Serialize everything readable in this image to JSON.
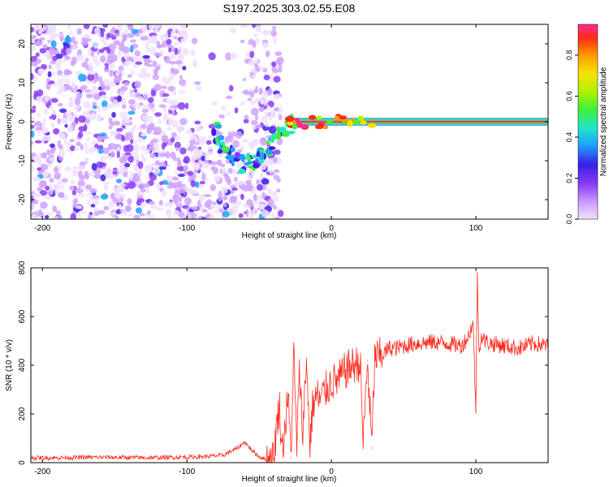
{
  "figure": {
    "title": "S197.2025.303.02.55.E08"
  },
  "chart_data": [
    {
      "type": "heatmap",
      "xlabel": "Height of straight line (km)",
      "ylabel": "Frequency (Hz)",
      "xlim": [
        -208,
        150
      ],
      "ylim": [
        -25,
        25
      ],
      "xticks": [
        -200,
        -100,
        0,
        100
      ],
      "yticks": [
        -20,
        -10,
        0,
        10,
        20
      ],
      "colorbar": {
        "label": "Normalized spectral amplitude",
        "range": [
          0.0,
          0.95
        ],
        "ticks": [
          0.0,
          0.2,
          0.4,
          0.6,
          0.8
        ],
        "colors": [
          "#f0e2ff",
          "#cfa3ff",
          "#8a3df5",
          "#3b1ee8",
          "#1fa2ff",
          "#22e6c7",
          "#3ef03e",
          "#b4f000",
          "#f6e200",
          "#ff9a00",
          "#ff2a16",
          "#ff2c8f"
        ]
      },
      "features": [
        {
          "name": "broadband-noise",
          "x_range": [
            -208,
            -35
          ],
          "y_range": [
            -25,
            25
          ],
          "amplitude": 0.15
        },
        {
          "name": "dispersion-hook",
          "points": [
            [
              -80,
              -2
            ],
            [
              -75,
              -7
            ],
            [
              -68,
              -9
            ],
            [
              -60,
              -11
            ],
            [
              -52,
              -10
            ],
            [
              -45,
              -7
            ],
            [
              -38,
              -4
            ],
            [
              -30,
              -1
            ],
            [
              -25,
              0
            ]
          ],
          "amplitude": 0.45
        },
        {
          "name": "signal-line",
          "x_range": [
            -30,
            150
          ],
          "y": 0,
          "amplitude": 0.9
        }
      ]
    },
    {
      "type": "line",
      "xlabel": "Height of straight line (km)",
      "ylabel": "SNR (10 * v/v)",
      "xlim": [
        -208,
        150
      ],
      "ylim": [
        0,
        800
      ],
      "xticks": [
        -200,
        -100,
        0,
        100
      ],
      "yticks": [
        0,
        200,
        400,
        600,
        800
      ],
      "color": "#ff2a1f",
      "series": [
        {
          "name": "SNR",
          "x": [
            -208,
            -190,
            -170,
            -150,
            -130,
            -110,
            -90,
            -75,
            -65,
            -60,
            -55,
            -50,
            -45,
            -40,
            -38,
            -36,
            -34,
            -32,
            -30,
            -28,
            -26,
            -24,
            -22,
            -20,
            -17,
            -15,
            -13,
            -10,
            -8,
            -5,
            0,
            5,
            10,
            15,
            20,
            22,
            25,
            28,
            30,
            35,
            40,
            45,
            50,
            60,
            70,
            80,
            90,
            95,
            98,
            100,
            101,
            102,
            104,
            106,
            110,
            120,
            130,
            140,
            150
          ],
          "y": [
            20,
            20,
            22,
            22,
            20,
            22,
            24,
            30,
            60,
            85,
            50,
            25,
            12,
            18,
            140,
            240,
            50,
            150,
            280,
            20,
            450,
            60,
            380,
            120,
            430,
            60,
            230,
            280,
            250,
            290,
            330,
            340,
            380,
            400,
            410,
            80,
            420,
            60,
            430,
            440,
            470,
            470,
            480,
            490,
            495,
            490,
            480,
            520,
            580,
            220,
            800,
            470,
            520,
            500,
            490,
            480,
            470,
            490,
            480
          ]
        }
      ]
    }
  ]
}
